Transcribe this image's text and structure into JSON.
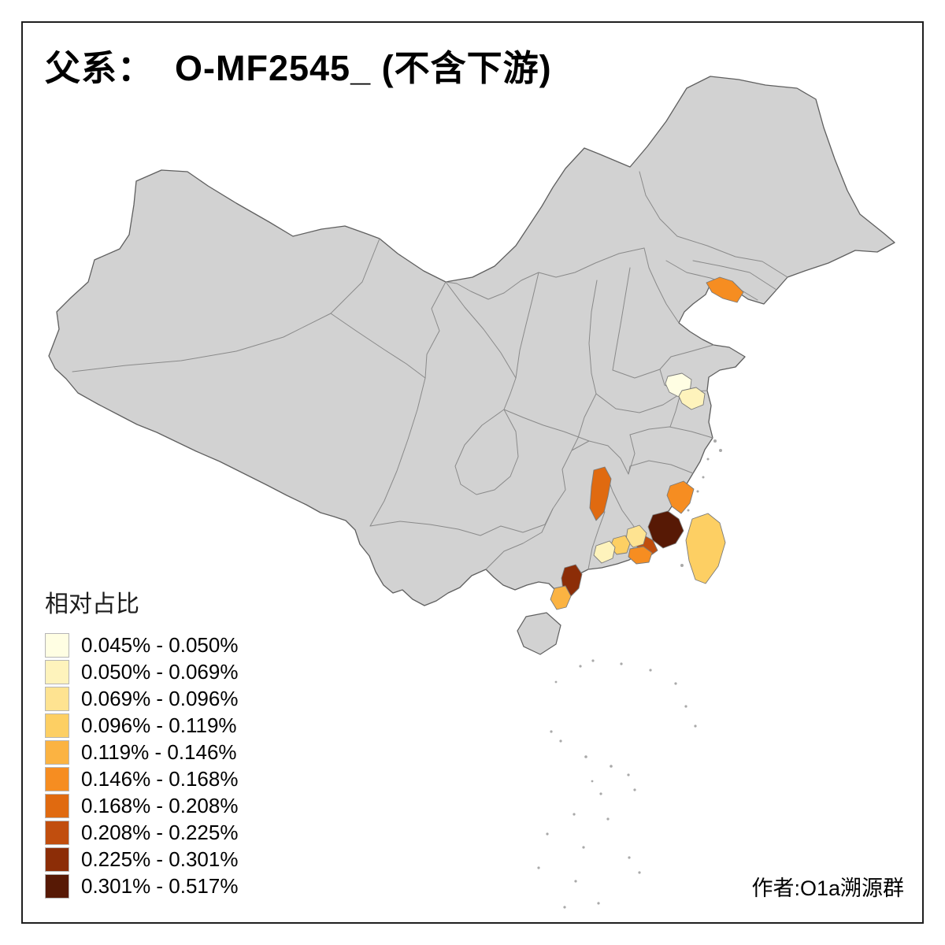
{
  "title": "父系：  O-MF2545_ (不含下游)",
  "author": "作者:O1a溯源群",
  "legend": {
    "title": "相对占比",
    "items": [
      {
        "range": "0.045% - 0.050%",
        "color": "#FFFEE3"
      },
      {
        "range": "0.050% - 0.069%",
        "color": "#FEF3BC"
      },
      {
        "range": "0.069% - 0.096%",
        "color": "#FEE391"
      },
      {
        "range": "0.096% - 0.119%",
        "color": "#FDCF63"
      },
      {
        "range": "0.119% - 0.146%",
        "color": "#FBB342"
      },
      {
        "range": "0.146% - 0.168%",
        "color": "#F68D21"
      },
      {
        "range": "0.168% - 0.208%",
        "color": "#E06A10"
      },
      {
        "range": "0.208% - 0.225%",
        "color": "#C14E0E"
      },
      {
        "range": "0.225% - 0.301%",
        "color": "#8C2D07"
      },
      {
        "range": "0.301% - 0.517%",
        "color": "#571905"
      }
    ]
  },
  "map": {
    "land_fill": "#D2D2D2",
    "land_border": "#5F5F5F",
    "inner_border": "#8A8A8A",
    "region_border": "#7A7A7A",
    "islet_color": "#A9A9A9",
    "regions": [
      {
        "id": "liaoning-dalian",
        "bin": 6
      },
      {
        "id": "jiangsu-central-west",
        "bin": 1
      },
      {
        "id": "jiangsu-central-east",
        "bin": 2
      },
      {
        "id": "jiangxi-east",
        "bin": 7
      },
      {
        "id": "fujian-northeast-coast",
        "bin": 6
      },
      {
        "id": "fujian-south-quanzhou",
        "bin": 10
      },
      {
        "id": "fujian-southwest-zhangzhou",
        "bin": 8
      },
      {
        "id": "guangdong-chaoshan",
        "bin": 6
      },
      {
        "id": "guangdong-east-inland",
        "bin": 3
      },
      {
        "id": "guangdong-huizhou",
        "bin": 4
      },
      {
        "id": "guangdong-central",
        "bin": 2
      },
      {
        "id": "guangdong-zhanjiang",
        "bin": 9
      },
      {
        "id": "leizhou-south",
        "bin": 5
      },
      {
        "id": "taiwan",
        "bin": 4
      }
    ]
  },
  "chart_data": {
    "type": "choropleth",
    "title": "父系：  O-MF2545_ (不含下游)",
    "legend_title": "相对占比",
    "legend_position": "bottom-left",
    "bins": [
      "0.045% - 0.050%",
      "0.050% - 0.069%",
      "0.069% - 0.096%",
      "0.096% - 0.119%",
      "0.119% - 0.146%",
      "0.146% - 0.168%",
      "0.168% - 0.208%",
      "0.208% - 0.225%",
      "0.225% - 0.301%",
      "0.301% - 0.517%"
    ],
    "bin_colors": [
      "#FFFEE3",
      "#FEF3BC",
      "#FEE391",
      "#FDCF63",
      "#FBB342",
      "#F68D21",
      "#E06A10",
      "#C14E0E",
      "#8C2D07",
      "#571905"
    ],
    "base_region_note": "all other prefectures shown in neutral gray (no data)",
    "regions": [
      {
        "area": "liaoning-dalian",
        "bin_index": 6,
        "range": "0.146% - 0.168%"
      },
      {
        "area": "jiangsu-central-west",
        "bin_index": 1,
        "range": "0.045% - 0.050%"
      },
      {
        "area": "jiangsu-central-east",
        "bin_index": 2,
        "range": "0.050% - 0.069%"
      },
      {
        "area": "jiangxi-east",
        "bin_index": 7,
        "range": "0.168% - 0.208%"
      },
      {
        "area": "fujian-northeast-coast",
        "bin_index": 6,
        "range": "0.146% - 0.168%"
      },
      {
        "area": "fujian-south-quanzhou",
        "bin_index": 10,
        "range": "0.301% - 0.517%"
      },
      {
        "area": "fujian-southwest-zhangzhou",
        "bin_index": 8,
        "range": "0.208% - 0.225%"
      },
      {
        "area": "guangdong-chaoshan",
        "bin_index": 6,
        "range": "0.146% - 0.168%"
      },
      {
        "area": "guangdong-east-inland",
        "bin_index": 3,
        "range": "0.069% - 0.096%"
      },
      {
        "area": "guangdong-huizhou",
        "bin_index": 4,
        "range": "0.096% - 0.119%"
      },
      {
        "area": "guangdong-central",
        "bin_index": 2,
        "range": "0.050% - 0.069%"
      },
      {
        "area": "guangdong-zhanjiang",
        "bin_index": 9,
        "range": "0.225% - 0.301%"
      },
      {
        "area": "leizhou-south",
        "bin_index": 5,
        "range": "0.119% - 0.146%"
      },
      {
        "area": "taiwan",
        "bin_index": 4,
        "range": "0.096% - 0.119%"
      }
    ]
  }
}
